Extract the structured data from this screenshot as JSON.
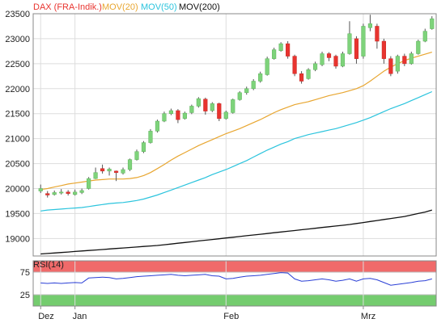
{
  "chart_data": [
    {
      "type": "candlestick",
      "legend": [
        {
          "label": "DAX (FRA-Indik.)",
          "color": "#e8342f"
        },
        {
          "label": "MOV(20)",
          "color": "#e8a630"
        },
        {
          "label": "MOV(50)",
          "color": "#2bc4dd"
        },
        {
          "label": "MOV(200)",
          "color": "#111111"
        }
      ],
      "ylim": [
        18650,
        23500
      ],
      "y_ticks": [
        19000,
        19500,
        20000,
        20500,
        21000,
        21500,
        22000,
        22500,
        23000,
        23500
      ],
      "x_ticks": [
        {
          "label": "Dez",
          "i": 0
        },
        {
          "label": "Jan",
          "i": 5
        },
        {
          "label": "Feb",
          "i": 27
        },
        {
          "label": "Mrz",
          "i": 47
        }
      ],
      "n": 58,
      "colors": {
        "up": "#7ed37b",
        "down": "#e8342f",
        "wick": "#555555",
        "grid": "#dddddd",
        "axis": "#888888"
      },
      "candles": [
        [
          19950,
          20000,
          19910,
          20080
        ],
        [
          19900,
          19870,
          19820,
          19950
        ],
        [
          19880,
          19920,
          19860,
          19960
        ],
        [
          19910,
          19930,
          19880,
          19990
        ],
        [
          19930,
          19900,
          19860,
          19970
        ],
        [
          19880,
          19930,
          19860,
          19980
        ],
        [
          19920,
          19960,
          19890,
          20000
        ],
        [
          20000,
          20200,
          19980,
          20230
        ],
        [
          20200,
          20320,
          20190,
          20420
        ],
        [
          20400,
          20350,
          20300,
          20480
        ],
        [
          20350,
          20390,
          20260,
          20420
        ],
        [
          20350,
          20320,
          20150,
          20360
        ],
        [
          20310,
          20380,
          20280,
          20420
        ],
        [
          20380,
          20580,
          20350,
          20600
        ],
        [
          20580,
          20740,
          20560,
          20780
        ],
        [
          20740,
          20920,
          20710,
          20950
        ],
        [
          20920,
          21150,
          20900,
          21190
        ],
        [
          21150,
          21350,
          21120,
          21380
        ],
        [
          21350,
          21500,
          21330,
          21540
        ],
        [
          21500,
          21560,
          21470,
          21600
        ],
        [
          21560,
          21380,
          21310,
          21590
        ],
        [
          21400,
          21510,
          21380,
          21540
        ],
        [
          21520,
          21650,
          21490,
          21680
        ],
        [
          21650,
          21800,
          21620,
          21830
        ],
        [
          21790,
          21550,
          21480,
          21820
        ],
        [
          21560,
          21700,
          21530,
          21730
        ],
        [
          21700,
          21400,
          21350,
          21720
        ],
        [
          21400,
          21530,
          21380,
          21560
        ],
        [
          21520,
          21780,
          21500,
          21800
        ],
        [
          21780,
          21920,
          21760,
          21950
        ],
        [
          21920,
          22000,
          21880,
          22040
        ],
        [
          22000,
          22150,
          21970,
          22190
        ],
        [
          22150,
          22300,
          22120,
          22340
        ],
        [
          22280,
          22600,
          22260,
          22640
        ],
        [
          22600,
          22780,
          22580,
          22820
        ],
        [
          22760,
          22900,
          22740,
          22930
        ],
        [
          22900,
          22650,
          22600,
          22950
        ],
        [
          22650,
          22300,
          22250,
          22680
        ],
        [
          22300,
          22150,
          22100,
          22350
        ],
        [
          22200,
          22380,
          22180,
          22410
        ],
        [
          22380,
          22500,
          22350,
          22540
        ],
        [
          22480,
          22700,
          22450,
          22740
        ],
        [
          22700,
          22620,
          22550,
          22730
        ],
        [
          22650,
          22450,
          22400,
          22680
        ],
        [
          22450,
          22700,
          22430,
          22740
        ],
        [
          22700,
          23100,
          22680,
          23350
        ],
        [
          23000,
          22600,
          22500,
          23050
        ],
        [
          22650,
          23250,
          22600,
          23300
        ],
        [
          23220,
          23300,
          23150,
          23480
        ],
        [
          23250,
          22950,
          22800,
          23300
        ],
        [
          22950,
          22600,
          22500,
          23000
        ],
        [
          22600,
          22300,
          22250,
          22650
        ],
        [
          22350,
          22650,
          22300,
          22680
        ],
        [
          22650,
          22500,
          22450,
          22700
        ],
        [
          22500,
          22700,
          22480,
          22740
        ],
        [
          22700,
          22950,
          22680,
          22980
        ],
        [
          22950,
          23150,
          22930,
          23200
        ],
        [
          23200,
          23400,
          23180,
          23450
        ]
      ],
      "mov20": [
        19980,
        20000,
        20030,
        20060,
        20090,
        20110,
        20130,
        20150,
        20170,
        20180,
        20190,
        20190,
        20190,
        20200,
        20220,
        20260,
        20320,
        20400,
        20480,
        20570,
        20650,
        20720,
        20790,
        20860,
        20920,
        20980,
        21040,
        21100,
        21150,
        21200,
        21260,
        21320,
        21380,
        21450,
        21520,
        21580,
        21630,
        21680,
        21710,
        21740,
        21780,
        21820,
        21860,
        21890,
        21920,
        21960,
        22000,
        22060,
        22150,
        22250,
        22350,
        22430,
        22500,
        22560,
        22610,
        22650,
        22690,
        22730
      ],
      "mov50": [
        19550,
        19570,
        19580,
        19590,
        19600,
        19610,
        19620,
        19640,
        19660,
        19680,
        19700,
        19710,
        19720,
        19740,
        19760,
        19790,
        19830,
        19870,
        19920,
        19970,
        20020,
        20070,
        20120,
        20170,
        20220,
        20280,
        20330,
        20380,
        20440,
        20500,
        20560,
        20630,
        20700,
        20770,
        20830,
        20890,
        20940,
        21000,
        21040,
        21080,
        21110,
        21140,
        21170,
        21200,
        21240,
        21280,
        21320,
        21370,
        21420,
        21480,
        21540,
        21600,
        21650,
        21700,
        21760,
        21820,
        21880,
        21940
      ],
      "mov200": [
        18690,
        18700,
        18710,
        18720,
        18730,
        18740,
        18750,
        18760,
        18770,
        18780,
        18790,
        18800,
        18810,
        18820,
        18830,
        18840,
        18850,
        18860,
        18875,
        18890,
        18905,
        18920,
        18935,
        18950,
        18965,
        18980,
        18995,
        19010,
        19025,
        19040,
        19055,
        19070,
        19085,
        19100,
        19115,
        19130,
        19145,
        19160,
        19175,
        19190,
        19205,
        19220,
        19235,
        19250,
        19265,
        19280,
        19300,
        19320,
        19340,
        19360,
        19380,
        19400,
        19420,
        19440,
        19470,
        19500,
        19530,
        19570
      ]
    },
    {
      "type": "line",
      "title": "RSI(14)",
      "ylim": [
        0,
        100
      ],
      "y_ticks": [
        25,
        75
      ],
      "bands": {
        "overbought": "#f06a6a",
        "oversold": "#74cc6e"
      },
      "line_color": "#2a3fd6",
      "values": [
        51,
        50,
        51,
        50,
        51,
        52,
        51,
        62,
        63,
        64,
        63,
        60,
        61,
        63,
        65,
        66,
        67,
        68,
        69,
        70,
        68,
        67,
        68,
        69,
        70,
        67,
        66,
        60,
        61,
        64,
        66,
        67,
        68,
        70,
        72,
        74,
        73,
        60,
        55,
        56,
        58,
        60,
        58,
        55,
        57,
        60,
        55,
        60,
        61,
        58,
        52,
        46,
        48,
        50,
        52,
        55,
        56,
        60
      ]
    }
  ]
}
